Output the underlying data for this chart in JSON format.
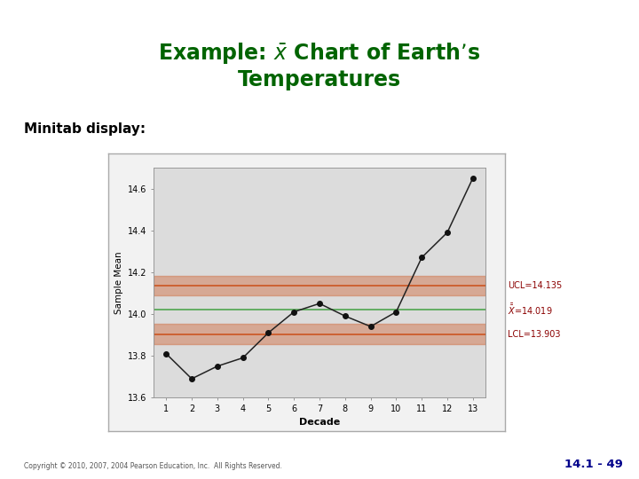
{
  "subtitle": "Minitab display:",
  "decades": [
    1,
    2,
    3,
    4,
    5,
    6,
    7,
    8,
    9,
    10,
    11,
    12,
    13
  ],
  "temps": [
    13.81,
    13.69,
    13.75,
    13.79,
    13.91,
    14.01,
    14.05,
    13.99,
    13.94,
    14.01,
    14.27,
    14.39,
    14.65
  ],
  "UCL": 14.135,
  "CL": 14.019,
  "LCL": 13.903,
  "xlabel": "Decade",
  "ylabel": "Sample Mean",
  "ylim": [
    13.6,
    14.7
  ],
  "yticks": [
    13.6,
    13.8,
    14.0,
    14.2,
    14.4,
    14.6
  ],
  "title_color": "#006400",
  "subtitle_color": "#000000",
  "ucl_color": "#cd5c2a",
  "cl_color": "#5aaa5a",
  "lcl_color": "#cd5c2a",
  "data_line_color": "#222222",
  "data_marker_color": "#111111",
  "plot_bg_color": "#dcdcdc",
  "outer_bg_color": "#f2f2f2",
  "annotation_color": "#8b0000",
  "copyright_text": "Copyright © 2010, 2007, 2004 Pearson Education, Inc.  All Rights Reserved.",
  "page_ref": "14.1 - 49",
  "left_bar_color": "#2d6a2d",
  "band_alpha": 0.4,
  "band_halfwidth": 0.048
}
